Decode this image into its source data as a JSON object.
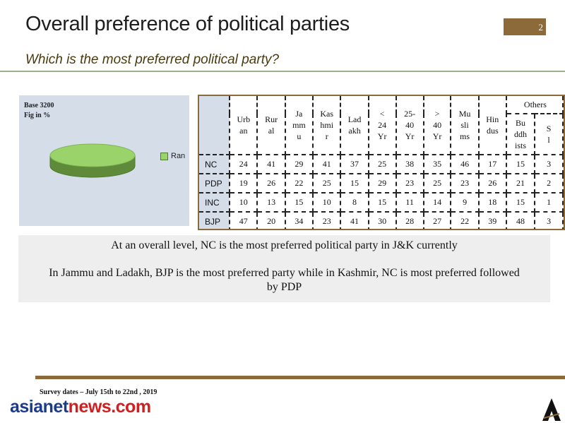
{
  "header": {
    "title": "Overall preference of political parties",
    "page_number": "2",
    "subtitle": "Which is the most preferred political party?"
  },
  "chart": {
    "base_label": "Base 3200",
    "fig_label": "Fig in %",
    "legend_label": "Ran",
    "colors": {
      "top": "#9bd36b",
      "side": "#5e8a3a",
      "edge": "#4e7a2c"
    }
  },
  "table": {
    "others_label": "Others",
    "columns": [
      [
        "Urb",
        "an"
      ],
      [
        "Rur",
        "al"
      ],
      [
        "Ja",
        "mm",
        "u"
      ],
      [
        "Kas",
        "hmi",
        "r"
      ],
      [
        "Lad",
        "akh"
      ],
      [
        "<",
        "24",
        "Yr"
      ],
      [
        "25-",
        "40",
        "Yr"
      ],
      [
        ">",
        "40",
        "Yr"
      ],
      [
        "Mu",
        "sli",
        "ms"
      ],
      [
        "Hin",
        "dus"
      ],
      [
        "Bu",
        "ddh",
        "ists"
      ],
      [
        "S",
        "l"
      ]
    ],
    "rows": [
      {
        "label": "NC",
        "values": [
          "24",
          "41",
          "29",
          "41",
          "37",
          "25",
          "38",
          "35",
          "46",
          "17",
          "15",
          "3"
        ]
      },
      {
        "label": "PDP",
        "values": [
          "19",
          "26",
          "22",
          "25",
          "15",
          "29",
          "23",
          "25",
          "23",
          "26",
          "21",
          "2"
        ]
      },
      {
        "label": "INC",
        "values": [
          "10",
          "13",
          "15",
          "10",
          "8",
          "15",
          "11",
          "14",
          "9",
          "18",
          "15",
          "1"
        ]
      },
      {
        "label": "BJP",
        "values": [
          "47",
          "20",
          "34",
          "23",
          "41",
          "30",
          "28",
          "27",
          "22",
          "39",
          "48",
          "3"
        ]
      }
    ]
  },
  "summary": {
    "line1": "At an overall level, NC is the most preferred political party in J&K currently",
    "line2": "In Jammu and Ladakh, BJP is the most preferred party while in Kashmir, NC is most preferred followed by PDP"
  },
  "footer": {
    "survey_dates": "Survey dates – July 15th  to 22nd  , 2019",
    "brand_part1": "asianet",
    "brand_part2": "news.com"
  }
}
